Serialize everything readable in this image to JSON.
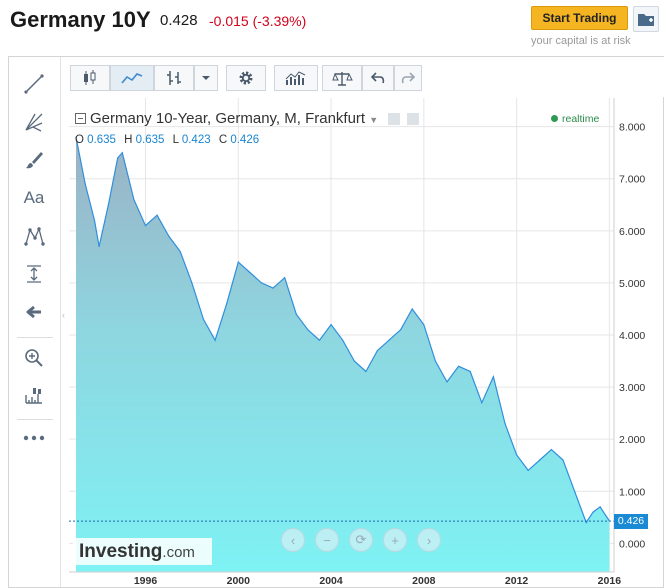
{
  "header": {
    "title": "Germany 10Y",
    "price": "0.428",
    "change": "-0.015 (-3.39%)",
    "start_trading": "Start Trading",
    "capital_risk": "your capital is at risk"
  },
  "legend": {
    "text": "Germany 10-Year, Germany, M, Frankfurt",
    "realtime": "realtime",
    "o_label": "O",
    "o_value": "0.635",
    "h_label": "H",
    "h_value": "0.635",
    "l_label": "L",
    "l_value": "0.423",
    "c_label": "C",
    "c_value": "0.426"
  },
  "logo": {
    "main": "Investing",
    "suffix": ".com"
  },
  "last_price_label": "0.426",
  "colors": {
    "line": "#2f8fdc",
    "up": "#d0021b",
    "accent": "#f5b522",
    "last": "#1b8ad5"
  },
  "icons": [
    "line-tool-icon",
    "fib-tool-icon",
    "brush-icon",
    "text-tool-icon",
    "pattern-icon",
    "measure-icon",
    "back-arrow-icon",
    "zoom-icon",
    "ruler-icon",
    "more-icon",
    "candles-icon",
    "area-icon",
    "bars-icon",
    "gear-icon",
    "indicators-icon",
    "compare-icon",
    "undo-icon",
    "redo-icon"
  ],
  "chart_data": {
    "type": "area",
    "title": "Germany 10-Year, Germany, M, Frankfurt",
    "x": [
      1993.0,
      1993.4,
      1993.8,
      1994.0,
      1994.4,
      1994.8,
      1995.0,
      1995.5,
      1996.0,
      1996.5,
      1997.0,
      1997.5,
      1998.0,
      1998.5,
      1999.0,
      1999.5,
      2000.0,
      2000.5,
      2001.0,
      2001.5,
      2002.0,
      2002.5,
      2003.0,
      2003.5,
      2004.0,
      2004.5,
      2005.0,
      2005.5,
      2006.0,
      2006.5,
      2007.0,
      2007.5,
      2008.0,
      2008.5,
      2009.0,
      2009.5,
      2010.0,
      2010.5,
      2011.0,
      2011.5,
      2012.0,
      2012.5,
      2013.0,
      2013.5,
      2014.0,
      2014.5,
      2015.0,
      2015.3,
      2015.6,
      2016.0
    ],
    "y": [
      7.8,
      6.9,
      6.2,
      5.7,
      6.5,
      7.4,
      7.5,
      6.6,
      6.1,
      6.3,
      5.9,
      5.6,
      5.0,
      4.3,
      3.9,
      4.6,
      5.4,
      5.2,
      5.0,
      4.9,
      5.1,
      4.4,
      4.1,
      3.9,
      4.2,
      3.9,
      3.5,
      3.3,
      3.7,
      3.9,
      4.1,
      4.5,
      4.2,
      3.5,
      3.1,
      3.4,
      3.3,
      2.7,
      3.2,
      2.3,
      1.7,
      1.4,
      1.6,
      1.8,
      1.6,
      1.0,
      0.4,
      0.6,
      0.7,
      0.43
    ],
    "xticks": [
      "1996",
      "2000",
      "2004",
      "2008",
      "2012",
      "2016"
    ],
    "yticks": [
      "8.000",
      "7.000",
      "6.000",
      "5.000",
      "4.000",
      "3.000",
      "2.000",
      "1.000",
      "0.000"
    ],
    "xlim": [
      1992.7,
      2016.2
    ],
    "ylim": [
      -0.55,
      8.55
    ],
    "last_value": 0.426,
    "grid": true
  }
}
